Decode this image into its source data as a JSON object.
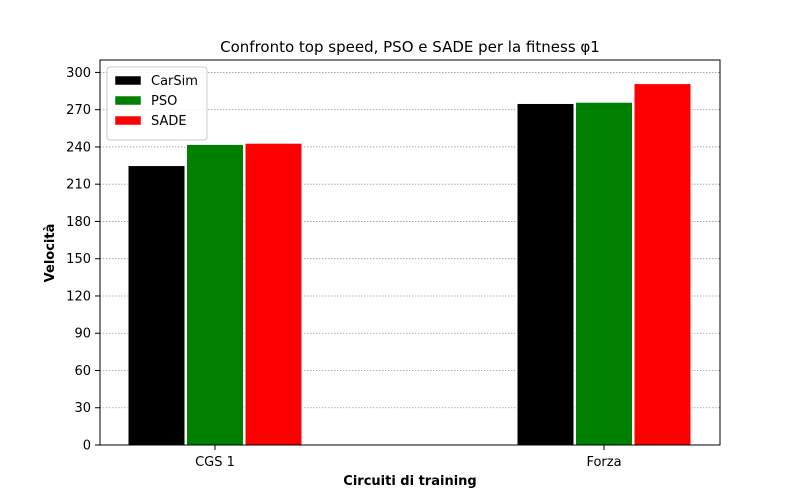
{
  "chart_data": {
    "type": "bar",
    "title": "Confronto top speed, PSO e SADE per la fitness φ1",
    "xlabel": "Circuiti di training",
    "ylabel": "Velocità",
    "categories": [
      "CGS 1",
      "Forza"
    ],
    "series": [
      {
        "name": "CarSim",
        "color": "#000000",
        "values": [
          225,
          275
        ]
      },
      {
        "name": "PSO",
        "color": "#008000",
        "values": [
          242,
          276
        ]
      },
      {
        "name": "SADE",
        "color": "#ff0000",
        "values": [
          243,
          291
        ]
      }
    ],
    "ylim": [
      0,
      310
    ],
    "yticks": [
      0,
      30,
      60,
      90,
      120,
      150,
      180,
      210,
      240,
      270,
      300
    ],
    "grid": true,
    "legend_position": "top-left"
  }
}
